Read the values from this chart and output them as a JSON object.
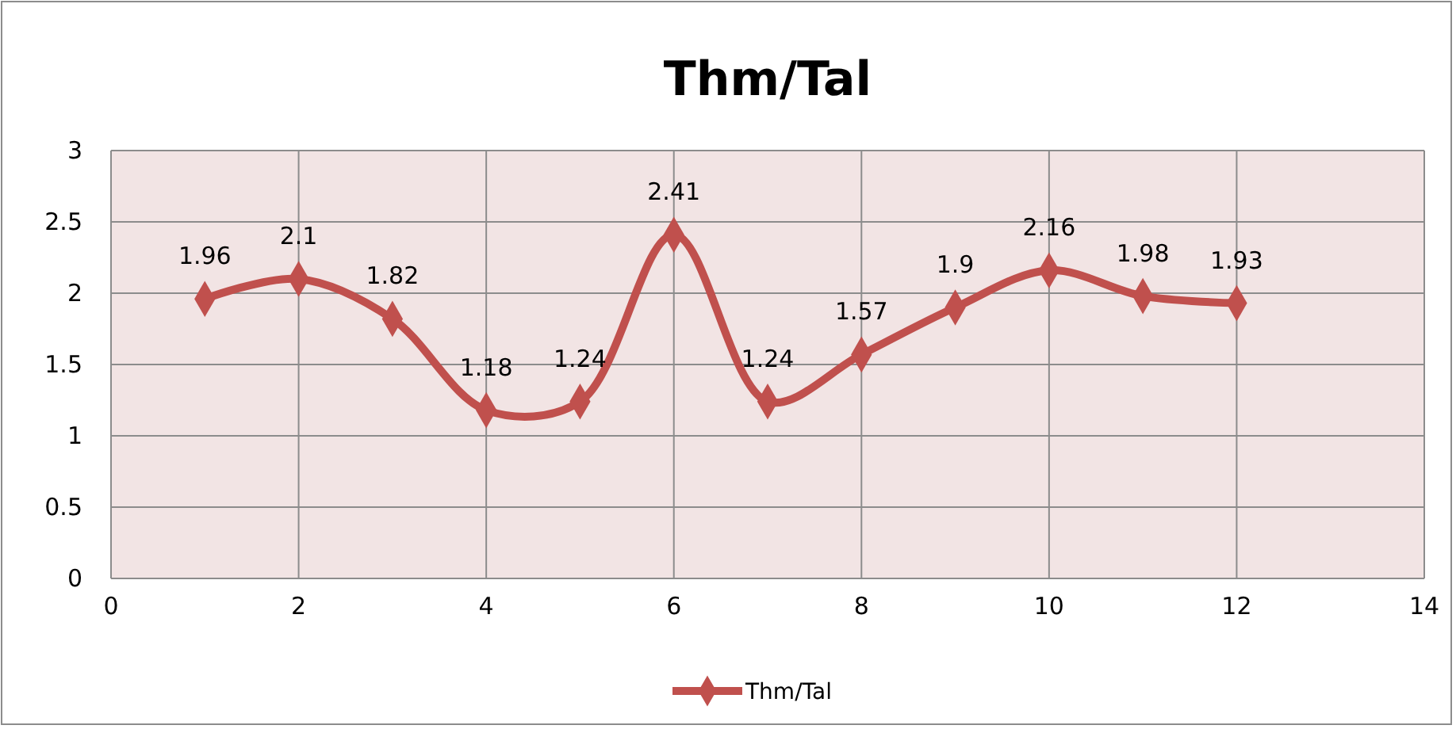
{
  "chart_data": {
    "type": "line",
    "title": "Thm/Tal",
    "x": [
      1,
      2,
      3,
      4,
      5,
      6,
      7,
      8,
      9,
      10,
      11,
      12
    ],
    "series": [
      {
        "name": "Thm/Tal",
        "color": "#c0504d",
        "values": [
          1.96,
          2.1,
          1.82,
          1.18,
          1.24,
          2.41,
          1.24,
          1.57,
          1.9,
          2.16,
          1.98,
          1.93
        ]
      }
    ],
    "xlim": [
      0,
      14
    ],
    "xticks": [
      0,
      2,
      4,
      6,
      8,
      10,
      12,
      14
    ],
    "ylim": [
      0,
      3
    ],
    "yticks": [
      0,
      0.5,
      1,
      1.5,
      2,
      2.5,
      3
    ],
    "grid": true,
    "legend": "bottom",
    "marker": "diamond",
    "line_style": "solid",
    "data_labels": true
  }
}
